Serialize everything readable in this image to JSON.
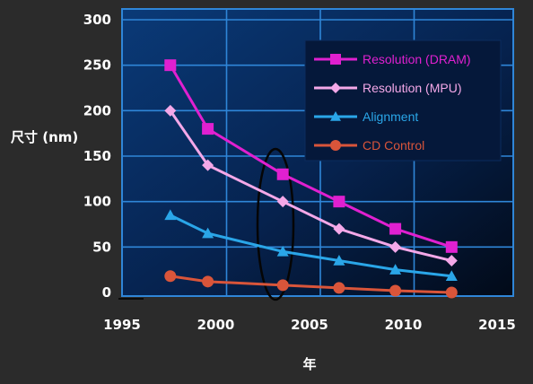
{
  "chart_data": {
    "type": "line",
    "xlabel": "年",
    "ylabel": "尺寸 (nm)",
    "xlim": [
      1995,
      2015
    ],
    "ylim": [
      0,
      300
    ],
    "xticks": [
      1995,
      2000,
      2005,
      2010,
      2015
    ],
    "yticks": [
      0,
      50,
      100,
      150,
      200,
      250,
      300
    ],
    "grid": true,
    "legend_position": "top-right",
    "series": [
      {
        "name": "Resolution (DRAM)",
        "color": "#e020d0",
        "marker": "square",
        "x": [
          1997,
          1999,
          2003,
          2006,
          2009,
          2012
        ],
        "y": [
          250,
          180,
          130,
          100,
          70,
          50
        ]
      },
      {
        "name": "Resolution (MPU)",
        "color": "#f4a8e8",
        "marker": "diamond",
        "x": [
          1997,
          1999,
          2003,
          2006,
          2009,
          2012
        ],
        "y": [
          200,
          140,
          100,
          70,
          50,
          35
        ]
      },
      {
        "name": "Alignment",
        "color": "#2aa6e8",
        "marker": "triangle",
        "x": [
          1997,
          1999,
          2003,
          2006,
          2009,
          2012
        ],
        "y": [
          85,
          65,
          45,
          35,
          25,
          18
        ]
      },
      {
        "name": "CD Control",
        "color": "#d9553a",
        "marker": "circle",
        "x": [
          1997,
          1999,
          2003,
          2006,
          2009,
          2012
        ],
        "y": [
          18,
          12,
          8,
          5,
          2,
          0
        ]
      }
    ]
  }
}
